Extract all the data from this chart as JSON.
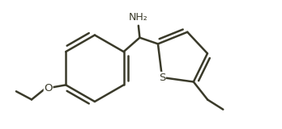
{
  "bg_color": "#ffffff",
  "line_color": "#3a3a2a",
  "line_width": 1.8,
  "figsize": [
    3.48,
    1.6
  ],
  "dpi": 100,
  "NH2_label": "NH₂",
  "S_label": "S",
  "O_label": "O",
  "font_size_labels": 9.5,
  "font_size_NH2": 9.0
}
